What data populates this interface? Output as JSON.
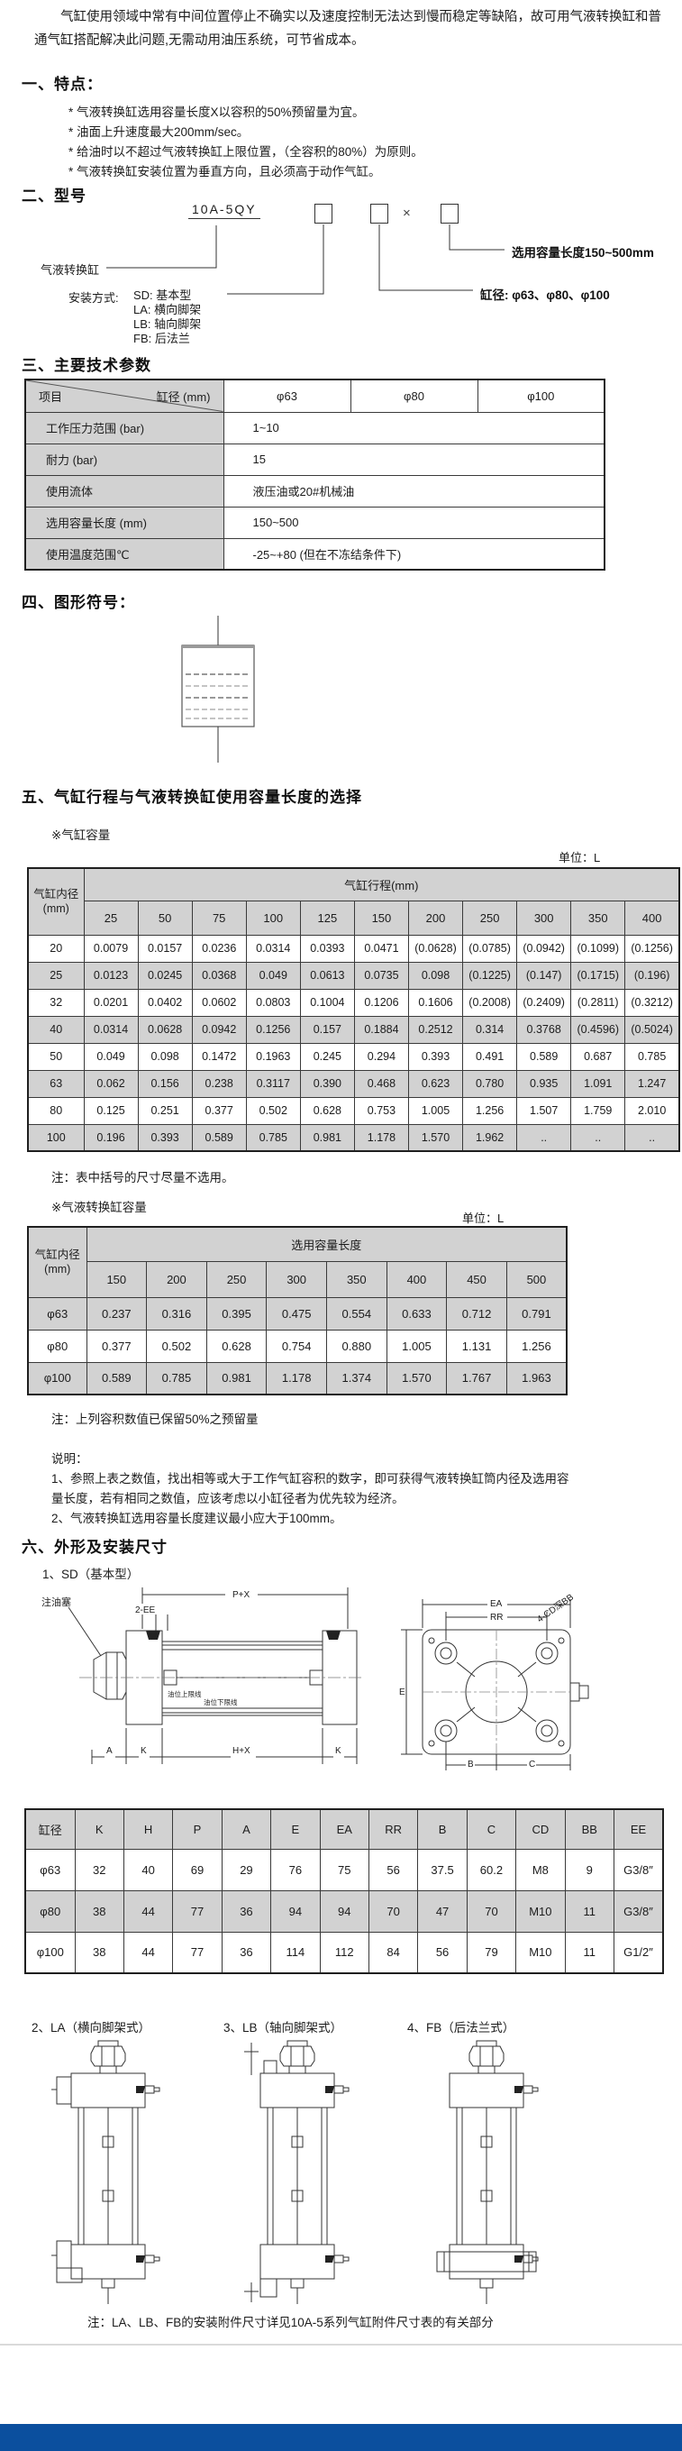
{
  "intro": "气缸使用领域中常有中间位置停止不确实以及速度控制无法达到慢而稳定等缺陷，故可用气液转换缸和普通气缸搭配解决此问题,无需动用油压系统，可节省成本。",
  "features": {
    "title": "一、特点：",
    "items": [
      "* 气液转换缸选用容量长度X以容积的50%预留量为宜。",
      "* 油面上升速度最大200mm/sec。",
      "* 给油时以不超过气液转换缸上限位置，（全容积的80%）为原则。",
      "* 气液转换缸安装位置为垂直方向，且必须高于动作气缸。"
    ]
  },
  "model": {
    "title": "二、型号",
    "code": "10A-5QY",
    "times": "×",
    "converter_label": "气液转换缸",
    "capacity_label": "选用容量长度150~500mm",
    "bore_label": "缸径: φ63、φ80、φ100",
    "mounting_label": "安装方式:",
    "mounting_options": [
      "SD: 基本型",
      "LA: 横向脚架",
      "LB: 轴向脚架",
      "FB: 后法兰"
    ]
  },
  "params": {
    "title": "三、主要技术参数",
    "corner_top": "缸径 (mm)",
    "corner_bottom": "项目",
    "bores": [
      "φ63",
      "φ80",
      "φ100"
    ],
    "rows": [
      {
        "label": "工作压力范围 (bar)",
        "value": "1~10"
      },
      {
        "label": "耐力 (bar)",
        "value": "15"
      },
      {
        "label": "使用流体",
        "value": "液压油或20#机械油"
      },
      {
        "label": "选用容量长度 (mm)",
        "value": "150~500"
      },
      {
        "label": "使用温度范围℃",
        "value": "-25~+80 (但在不冻结条件下)"
      }
    ]
  },
  "symbol": {
    "title": "四、图形符号："
  },
  "selection": {
    "title": "五、气缸行程与气液转换缸使用容量长度的选择",
    "cyl_capacity": {
      "caption": "※气缸容量",
      "unit": "单位：L",
      "bore_header_line1": "气缸内径",
      "bore_header_line2": "(mm)",
      "stroke_header": "气缸行程(mm)",
      "strokes": [
        "25",
        "50",
        "75",
        "100",
        "125",
        "150",
        "200",
        "250",
        "300",
        "350",
        "400"
      ],
      "rows": [
        {
          "bore": "20",
          "values": [
            "0.0079",
            "0.0157",
            "0.0236",
            "0.0314",
            "0.0393",
            "0.0471",
            "(0.0628)",
            "(0.0785)",
            "(0.0942)",
            "(0.1099)",
            "(0.1256)"
          ]
        },
        {
          "bore": "25",
          "values": [
            "0.0123",
            "0.0245",
            "0.0368",
            "0.049",
            "0.0613",
            "0.0735",
            "0.098",
            "(0.1225)",
            "(0.147)",
            "(0.1715)",
            "(0.196)"
          ]
        },
        {
          "bore": "32",
          "values": [
            "0.0201",
            "0.0402",
            "0.0602",
            "0.0803",
            "0.1004",
            "0.1206",
            "0.1606",
            "(0.2008)",
            "(0.2409)",
            "(0.2811)",
            "(0.3212)"
          ]
        },
        {
          "bore": "40",
          "values": [
            "0.0314",
            "0.0628",
            "0.0942",
            "0.1256",
            "0.157",
            "0.1884",
            "0.2512",
            "0.314",
            "0.3768",
            "(0.4596)",
            "(0.5024)"
          ]
        },
        {
          "bore": "50",
          "values": [
            "0.049",
            "0.098",
            "0.1472",
            "0.1963",
            "0.245",
            "0.294",
            "0.393",
            "0.491",
            "0.589",
            "0.687",
            "0.785"
          ]
        },
        {
          "bore": "63",
          "values": [
            "0.062",
            "0.156",
            "0.238",
            "0.3117",
            "0.390",
            "0.468",
            "0.623",
            "0.780",
            "0.935",
            "1.091",
            "1.247"
          ]
        },
        {
          "bore": "80",
          "values": [
            "0.125",
            "0.251",
            "0.377",
            "0.502",
            "0.628",
            "0.753",
            "1.005",
            "1.256",
            "1.507",
            "1.759",
            "2.010"
          ]
        },
        {
          "bore": "100",
          "values": [
            "0.196",
            "0.393",
            "0.589",
            "0.785",
            "0.981",
            "1.178",
            "1.570",
            "1.962",
            "..",
            "..",
            ".."
          ]
        }
      ],
      "note": "注：表中括号的尺寸尽量不选用。"
    },
    "converter_capacity": {
      "caption": "※气液转换缸容量",
      "unit": "单位：L",
      "bore_header_line1": "气缸内径",
      "bore_header_line2": "(mm)",
      "length_header": "选用容量长度",
      "lengths": [
        "150",
        "200",
        "250",
        "300",
        "350",
        "400",
        "450",
        "500"
      ],
      "rows": [
        {
          "bore": "φ63",
          "values": [
            "0.237",
            "0.316",
            "0.395",
            "0.475",
            "0.554",
            "0.633",
            "0.712",
            "0.791"
          ]
        },
        {
          "bore": "φ80",
          "values": [
            "0.377",
            "0.502",
            "0.628",
            "0.754",
            "0.880",
            "1.005",
            "1.131",
            "1.256"
          ]
        },
        {
          "bore": "φ100",
          "values": [
            "0.589",
            "0.785",
            "0.981",
            "1.178",
            "1.374",
            "1.570",
            "1.767",
            "1.963"
          ]
        }
      ],
      "note": "注：上列容积数值已保留50%之预留量"
    },
    "explain": {
      "title": "说明：",
      "items": [
        "1、参照上表之数值，找出相等或大于工作气缸容积的数字，即可获得气液转换缸筒内径及选用容量长度，若有相同之数值，应该考虑以小缸径者为优先较为经济。",
        "2、气液转换缸选用容量长度建议最小应大于100mm。"
      ]
    }
  },
  "dimensions": {
    "title": "六、外形及安装尺寸",
    "sd_title": "1、SD（基本型）",
    "drawing_labels": {
      "oil_plug": "注油塞",
      "px": "P+X",
      "ee": "2-EE",
      "a": "A",
      "k1": "K",
      "hx": "H+X",
      "k2": "K",
      "ea": "EA",
      "rr": "RR",
      "b": "B",
      "c": "C",
      "e": "E",
      "cd_bb": "4-CD深BB",
      "oil_upper": "油位上限线",
      "oil_lower": "油位下限线"
    },
    "table": {
      "headers": [
        "缸径",
        "K",
        "H",
        "P",
        "A",
        "E",
        "EA",
        "RR",
        "B",
        "C",
        "CD",
        "BB",
        "EE"
      ],
      "rows": [
        [
          "φ63",
          "32",
          "40",
          "69",
          "29",
          "76",
          "75",
          "56",
          "37.5",
          "60.2",
          "M8",
          "9",
          "G3/8″"
        ],
        [
          "φ80",
          "38",
          "44",
          "77",
          "36",
          "94",
          "94",
          "70",
          "47",
          "70",
          "M10",
          "11",
          "G3/8″"
        ],
        [
          "φ100",
          "38",
          "44",
          "77",
          "36",
          "114",
          "112",
          "84",
          "56",
          "79",
          "M10",
          "11",
          "G1/2″"
        ]
      ]
    },
    "variants": [
      "2、LA（横向脚架式）",
      "3、LB（轴向脚架式）",
      "4、FB（后法兰式）"
    ],
    "note": "注：LA、LB、FB的安装附件尺寸详见10A-5系列气缸附件尺寸表的有关部分"
  },
  "colors": {
    "footer_bar": "#0b4f9e",
    "table_header_gray": "#d2d2d2",
    "divider_gray": "#dadada"
  }
}
